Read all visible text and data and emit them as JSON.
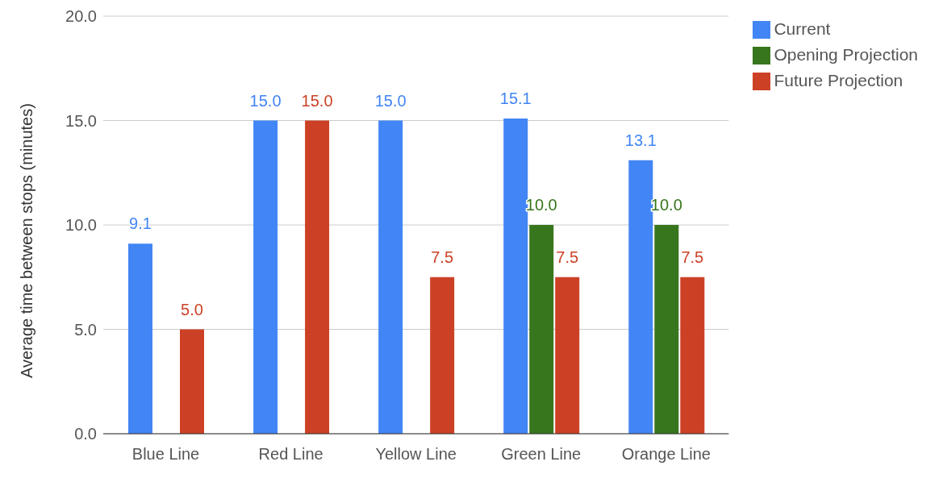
{
  "chart_data": {
    "type": "bar",
    "ylabel": "Average time between stops (minutes)",
    "categories": [
      "Blue Line",
      "Red Line",
      "Yellow Line",
      "Green Line",
      "Orange Line"
    ],
    "series": [
      {
        "name": "Current",
        "color": "#4285f4",
        "values": [
          9.1,
          15.0,
          15.0,
          15.1,
          13.1
        ],
        "value_labels": [
          "9.1",
          "15.0",
          "15.0",
          "15.1",
          "13.1"
        ]
      },
      {
        "name": "Opening Projection",
        "color": "#38761d",
        "values": [
          null,
          null,
          null,
          10.0,
          10.0
        ],
        "value_labels": [
          null,
          null,
          null,
          "10.0",
          "10.0"
        ]
      },
      {
        "name": "Future Projection",
        "color": "#cc4125",
        "values": [
          5.0,
          15.0,
          7.5,
          7.5,
          7.5
        ],
        "value_labels": [
          "5.0",
          "15.0",
          "7.5",
          "7.5",
          "7.5"
        ]
      }
    ],
    "ylim": [
      0,
      20
    ],
    "yticks": [
      {
        "value": 0,
        "label": "0.0"
      },
      {
        "value": 5,
        "label": "5.0"
      },
      {
        "value": 10,
        "label": "10.0"
      },
      {
        "value": 15,
        "label": "15.0"
      },
      {
        "value": 20,
        "label": "20.0"
      }
    ],
    "grid": "y",
    "legend": "top right"
  }
}
